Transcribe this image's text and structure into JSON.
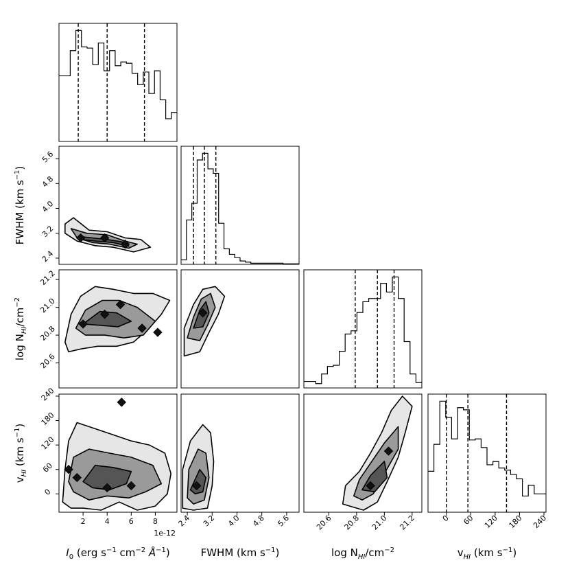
{
  "chart_data": {
    "type": "corner",
    "params": [
      {
        "key": "I0",
        "label": "I_0 (erg s^-1 cm^-2 Å^-1)",
        "range": [
          0.0,
          9.8
        ],
        "ticks": [
          2,
          4,
          6,
          8
        ],
        "tick_labels": [
          "2",
          "4",
          "6",
          "8"
        ],
        "offset_text": "1e-12",
        "quantiles": [
          1.6,
          4.0,
          7.1
        ],
        "histogram": [
          52,
          52,
          72,
          88,
          75,
          74,
          61,
          78,
          56,
          72,
          60,
          63,
          62,
          54,
          45,
          55,
          38,
          56,
          33,
          18,
          23
        ]
      },
      {
        "key": "FWHM",
        "label": "FWHM (km s^-1)",
        "range": [
          2.2,
          6.0
        ],
        "ticks": [
          2.4,
          3.2,
          4.0,
          4.8,
          5.6
        ],
        "tick_labels": [
          "2.4",
          "3.2",
          "4.0",
          "4.8",
          "5.6"
        ],
        "quantiles": [
          2.6,
          2.95,
          3.32
        ],
        "histogram": [
          4,
          40,
          55,
          94,
          100,
          86,
          82,
          37,
          14,
          9,
          6,
          3,
          2,
          1,
          1,
          1,
          1,
          1,
          1,
          0.5,
          0.5,
          0.5
        ]
      },
      {
        "key": "NHI",
        "label": "log N_HI/cm^-2",
        "range": [
          20.42,
          21.27
        ],
        "ticks": [
          20.6,
          20.8,
          21.0,
          21.2
        ],
        "tick_labels": [
          "20.6",
          "20.8",
          "21.0",
          "21.2"
        ],
        "quantiles": [
          20.79,
          20.95,
          21.07
        ],
        "histogram": [
          6,
          6,
          4,
          13,
          20,
          21,
          34,
          50,
          53,
          70,
          80,
          83,
          83,
          97,
          89,
          103,
          83,
          43,
          13,
          5
        ]
      },
      {
        "key": "vHI",
        "label": "v_HI (km s^-1)",
        "range": [
          -45,
          245
        ],
        "ticks": [
          0,
          60,
          120,
          180,
          240
        ],
        "tick_labels": [
          "0",
          "60",
          "120",
          "180",
          "240"
        ],
        "quantiles": [
          0,
          53,
          148
        ],
        "histogram": [
          38,
          63,
          103,
          88,
          68,
          97,
          95,
          67,
          68,
          60,
          44,
          47,
          41,
          39,
          35,
          31,
          15,
          25,
          17,
          17
        ]
      }
    ],
    "panels_2d": [
      {
        "x": "I0",
        "y": "FWHM",
        "y_range": [
          2.2,
          6.0
        ],
        "contours": [
          [
            [
              0.5,
              3.5
            ],
            [
              1.2,
              3.7
            ],
            [
              2.5,
              3.3
            ],
            [
              4.0,
              3.25
            ],
            [
              5.5,
              3.05
            ],
            [
              6.8,
              3.0
            ],
            [
              7.6,
              2.75
            ],
            [
              6.2,
              2.6
            ],
            [
              4.5,
              2.75
            ],
            [
              3.0,
              2.8
            ],
            [
              1.5,
              2.95
            ],
            [
              0.5,
              3.2
            ]
          ],
          [
            [
              1.0,
              3.35
            ],
            [
              2.3,
              3.2
            ],
            [
              4.0,
              3.15
            ],
            [
              5.5,
              2.95
            ],
            [
              6.5,
              2.85
            ],
            [
              5.8,
              2.72
            ],
            [
              4.2,
              2.85
            ],
            [
              2.8,
              2.9
            ],
            [
              1.5,
              3.05
            ]
          ],
          [
            [
              1.6,
              3.1
            ],
            [
              2.8,
              3.05
            ],
            [
              4.0,
              3.0
            ],
            [
              5.6,
              2.9
            ],
            [
              5.8,
              2.78
            ],
            [
              4.5,
              2.9
            ],
            [
              3.0,
              2.95
            ],
            [
              1.8,
              3.0
            ]
          ]
        ],
        "peaks": [
          [
            1.8,
            3.05
          ],
          [
            3.8,
            3.05
          ],
          [
            5.5,
            2.85
          ]
        ]
      },
      {
        "x": "I0",
        "y": "NHI",
        "y_range": [
          20.42,
          21.27
        ],
        "contours": [
          [
            [
              0.5,
              20.75
            ],
            [
              1.0,
              20.95
            ],
            [
              1.8,
              21.08
            ],
            [
              3.0,
              21.15
            ],
            [
              4.5,
              21.13
            ],
            [
              6.2,
              21.1
            ],
            [
              7.8,
              21.1
            ],
            [
              9.2,
              21.05
            ],
            [
              8.5,
              20.95
            ],
            [
              7.5,
              20.85
            ],
            [
              6.2,
              20.75
            ],
            [
              4.8,
              20.72
            ],
            [
              3.2,
              20.72
            ],
            [
              1.8,
              20.7
            ],
            [
              0.8,
              20.68
            ]
          ],
          [
            [
              1.4,
              20.85
            ],
            [
              2.2,
              20.98
            ],
            [
              3.6,
              21.05
            ],
            [
              5.0,
              21.05
            ],
            [
              6.5,
              21.0
            ],
            [
              8.0,
              20.9
            ],
            [
              7.0,
              20.8
            ],
            [
              5.4,
              20.78
            ],
            [
              3.8,
              20.8
            ],
            [
              2.2,
              20.8
            ]
          ],
          [
            [
              2.0,
              20.88
            ],
            [
              3.4,
              20.97
            ],
            [
              4.8,
              20.96
            ],
            [
              6.0,
              20.9
            ],
            [
              4.9,
              20.86
            ],
            [
              3.5,
              20.87
            ]
          ]
        ],
        "peaks": [
          [
            2.0,
            20.88
          ],
          [
            3.8,
            20.95
          ],
          [
            6.9,
            20.85
          ],
          [
            8.2,
            20.82
          ],
          [
            5.1,
            21.02
          ]
        ]
      },
      {
        "x": "FWHM",
        "y": "NHI",
        "y_range": [
          20.42,
          21.27
        ],
        "contours": [
          [
            [
              2.3,
              20.65
            ],
            [
              2.3,
              20.85
            ],
            [
              2.6,
              21.02
            ],
            [
              2.9,
              21.13
            ],
            [
              3.3,
              21.15
            ],
            [
              3.6,
              21.08
            ],
            [
              3.4,
              20.95
            ],
            [
              3.1,
              20.82
            ],
            [
              2.8,
              20.68
            ]
          ],
          [
            [
              2.4,
              20.78
            ],
            [
              2.6,
              20.93
            ],
            [
              2.85,
              21.06
            ],
            [
              3.15,
              21.1
            ],
            [
              3.3,
              21.0
            ],
            [
              3.05,
              20.87
            ],
            [
              2.8,
              20.76
            ]
          ],
          [
            [
              2.6,
              20.85
            ],
            [
              2.8,
              20.98
            ],
            [
              3.0,
              21.04
            ],
            [
              3.1,
              20.96
            ],
            [
              2.9,
              20.86
            ]
          ]
        ],
        "peaks": [
          [
            2.9,
            20.96
          ]
        ]
      },
      {
        "x": "I0",
        "y": "vHI",
        "y_range": [
          -45,
          245
        ],
        "contours": [
          [
            [
              0.3,
              -20
            ],
            [
              0.5,
              60
            ],
            [
              0.8,
              130
            ],
            [
              1.5,
              175
            ],
            [
              3.0,
              160
            ],
            [
              4.5,
              145
            ],
            [
              6.0,
              130
            ],
            [
              7.5,
              120
            ],
            [
              8.8,
              100
            ],
            [
              9.3,
              50
            ],
            [
              9.0,
              0
            ],
            [
              8.0,
              -30
            ],
            [
              6.5,
              -40
            ],
            [
              5.0,
              -20
            ],
            [
              3.5,
              -40
            ],
            [
              2.0,
              -35
            ],
            [
              1.0,
              -35
            ]
          ],
          [
            [
              0.8,
              30
            ],
            [
              1.2,
              90
            ],
            [
              2.5,
              110
            ],
            [
              4.2,
              100
            ],
            [
              6.0,
              90
            ],
            [
              7.8,
              70
            ],
            [
              8.5,
              25
            ],
            [
              7.2,
              5
            ],
            [
              5.8,
              -10
            ],
            [
              4.0,
              -5
            ],
            [
              2.5,
              -15
            ],
            [
              1.2,
              5
            ]
          ],
          [
            [
              2.0,
              30
            ],
            [
              3.0,
              70
            ],
            [
              4.5,
              65
            ],
            [
              6.0,
              55
            ],
            [
              5.6,
              25
            ],
            [
              4.2,
              10
            ],
            [
              2.8,
              15
            ]
          ]
        ],
        "peaks": [
          [
            0.8,
            60
          ],
          [
            5.2,
            225
          ],
          [
            4.0,
            15
          ],
          [
            6.0,
            20
          ],
          [
            1.5,
            40
          ]
        ]
      },
      {
        "x": "FWHM",
        "y": "vHI",
        "y_range": [
          -45,
          245
        ],
        "contours": [
          [
            [
              2.25,
              -35
            ],
            [
              2.25,
              60
            ],
            [
              2.5,
              130
            ],
            [
              2.9,
              170
            ],
            [
              3.15,
              150
            ],
            [
              3.25,
              80
            ],
            [
              3.2,
              20
            ],
            [
              3.05,
              -35
            ],
            [
              2.6,
              -40
            ]
          ],
          [
            [
              2.4,
              -10
            ],
            [
              2.45,
              60
            ],
            [
              2.75,
              110
            ],
            [
              3.0,
              100
            ],
            [
              3.1,
              40
            ],
            [
              2.95,
              -15
            ],
            [
              2.6,
              -25
            ]
          ],
          [
            [
              2.5,
              10
            ],
            [
              2.8,
              60
            ],
            [
              3.0,
              40
            ],
            [
              2.9,
              5
            ],
            [
              2.65,
              0
            ]
          ]
        ],
        "peaks": [
          [
            2.7,
            20
          ]
        ]
      },
      {
        "x": "NHI",
        "y": "vHI",
        "y_range": [
          -45,
          245
        ],
        "contours": [
          [
            [
              20.7,
              -25
            ],
            [
              20.72,
              20
            ],
            [
              20.82,
              55
            ],
            [
              20.9,
              100
            ],
            [
              20.98,
              150
            ],
            [
              21.05,
              205
            ],
            [
              21.13,
              240
            ],
            [
              21.2,
              215
            ],
            [
              21.15,
              150
            ],
            [
              21.1,
              90
            ],
            [
              21.02,
              30
            ],
            [
              20.95,
              -20
            ],
            [
              20.85,
              -40
            ]
          ],
          [
            [
              20.78,
              -5
            ],
            [
              20.82,
              35
            ],
            [
              20.9,
              75
            ],
            [
              21.0,
              125
            ],
            [
              21.1,
              165
            ],
            [
              21.1,
              110
            ],
            [
              21.0,
              50
            ],
            [
              20.92,
              0
            ],
            [
              20.84,
              -15
            ]
          ],
          [
            [
              20.84,
              10
            ],
            [
              20.9,
              45
            ],
            [
              21.0,
              80
            ],
            [
              21.02,
              40
            ],
            [
              20.93,
              5
            ]
          ]
        ],
        "peaks": [
          [
            20.9,
            20
          ],
          [
            21.03,
            105
          ]
        ]
      }
    ]
  }
}
